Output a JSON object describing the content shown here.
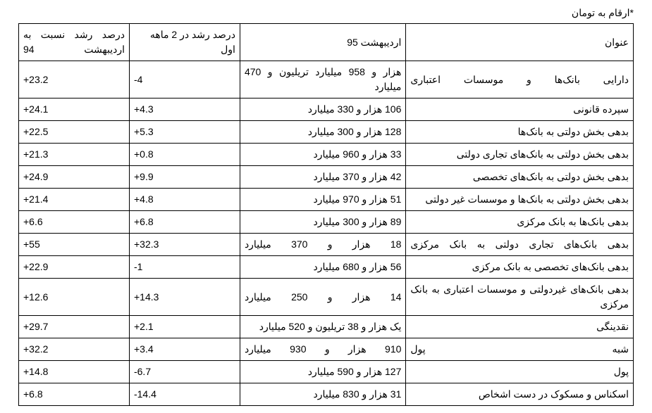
{
  "note": "*ارقام به تومان",
  "headers": {
    "title": "عنوان",
    "amount": "اردیبهشت 95",
    "growth_2mo": "درصد رشد در 2 ماهه اول",
    "growth_yoy": "درصد رشد نسبت به اردیبهشت 94"
  },
  "styling": {
    "background_color": "#ffffff",
    "border_color": "#000000",
    "text_color": "#000000",
    "font_family": "Tahoma",
    "font_size_pt": 10.5,
    "col_widths_pct": [
      37,
      27,
      18,
      18
    ],
    "justify_rows": [
      0,
      7,
      9,
      11
    ]
  },
  "rows": [
    {
      "title": "دارایی بانک‌ها و موسسات اعتباری",
      "amount": "هزار و 958 میلیارد تریلیون و 470 میلیارد",
      "g1": "-4",
      "g2": "+23.2"
    },
    {
      "title": "سپرده قانونی",
      "amount": "106 هزار و 330 میلیارد",
      "g1": "+4.3",
      "g2": "+24.1"
    },
    {
      "title": "بدهی بخش دولتی به بانک‌ها",
      "amount": "128 هزار و 300 میلیارد",
      "g1": "+5.3",
      "g2": "+22.5"
    },
    {
      "title": "بدهی بخش دولتی به بانک‌های تجاری دولتی",
      "amount": "33 هزار و 960 میلیارد",
      "g1": "+0.8",
      "g2": "+21.3"
    },
    {
      "title": "بدهی بخش دولتی به بانک‌های تخصصی",
      "amount": "42 هزار و 370 میلیارد",
      "g1": "+9.9",
      "g2": "+24.9"
    },
    {
      "title": "بدهی بخش دولتی به بانک‌ها و موسسات غیر دولتی",
      "amount": "51 هزار و 970 میلیارد",
      "g1": "+4.8",
      "g2": "+21.4"
    },
    {
      "title": "بدهی بانک‌ها به بانک مرکزی",
      "amount": "89 هزار و 300 میلیارد",
      "g1": "+6.8",
      "g2": "+6.6"
    },
    {
      "title": "بدهی بانک‌های تجاری دولتی به بانک مرکزی",
      "amount": "18 هزار و 370 میلیارد",
      "g1": "+32.3",
      "g2": "+55"
    },
    {
      "title": "بدهی بانک‌های تخصصی به بانک مرکزی",
      "amount": "56 هزار و 680 میلیارد",
      "g1": "-1",
      "g2": "+22.9"
    },
    {
      "title": "بدهی بانک‌های غیردولتی و موسسات اعتباری به بانک مرکزی",
      "amount": "14 هزار و 250 میلیارد",
      "g1": "+14.3",
      "g2": "+12.6"
    },
    {
      "title": "نقدینگی",
      "amount": "یک هزار و 38 تریلیون و 520 میلیارد",
      "g1": "+2.1",
      "g2": "+29.7"
    },
    {
      "title": "شبه پول",
      "amount": "910 هزار و 930 میلیارد",
      "g1": "+3.4",
      "g2": "+32.2"
    },
    {
      "title": "پول",
      "amount": "127 هزار و 590 میلیارد",
      "g1": "-6.7",
      "g2": "+14.8"
    },
    {
      "title": "اسکناس و مسکوک در دست اشخاص",
      "amount": "31 هزار و 830 میلیارد",
      "g1": "-14.4",
      "g2": "+6.8"
    }
  ]
}
